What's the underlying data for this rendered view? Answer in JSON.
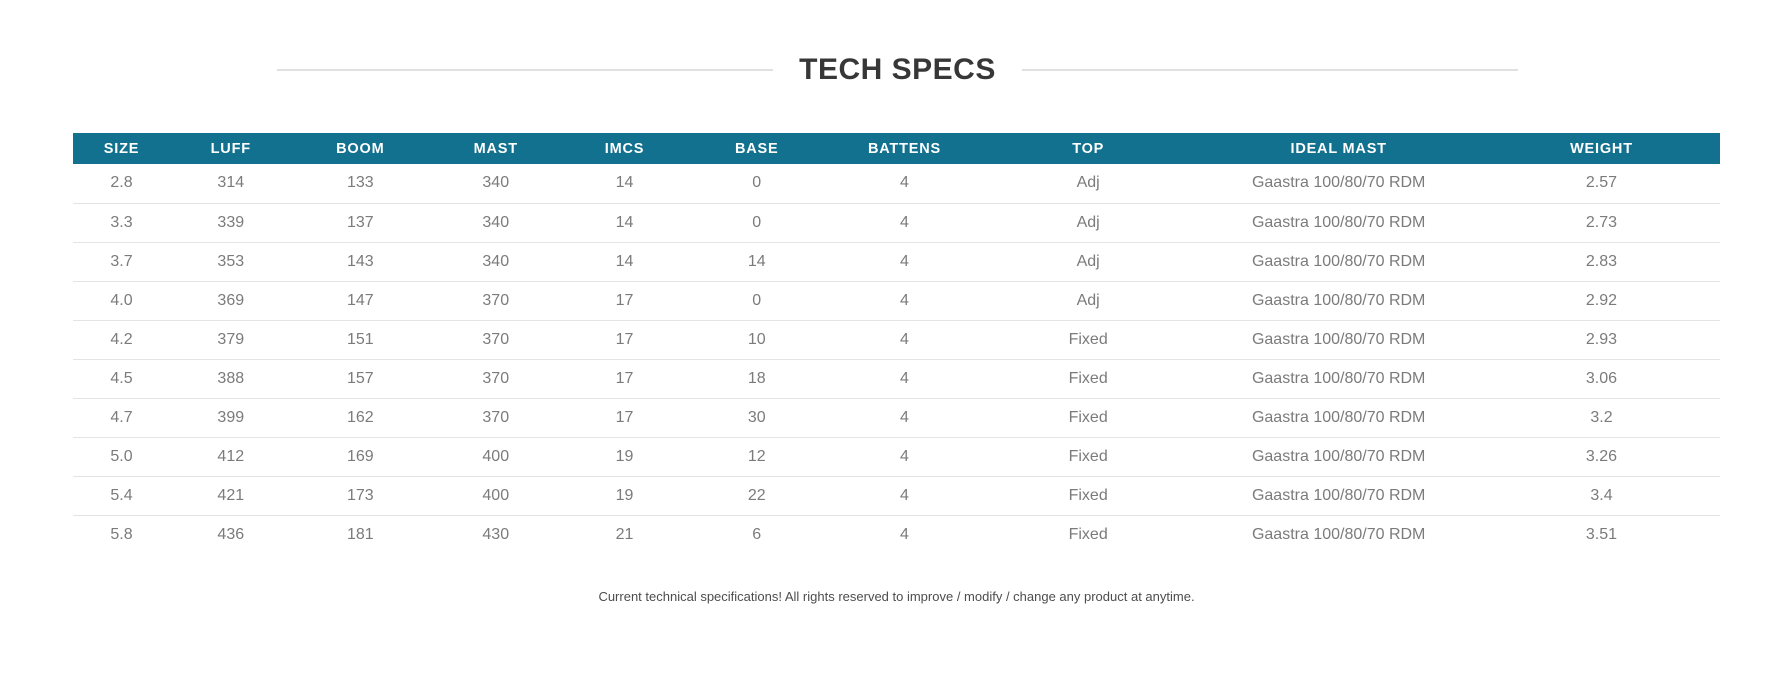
{
  "title": "TECH SPECS",
  "colors": {
    "header_bg": "#11718e",
    "header_text": "#ffffff",
    "row_text": "#7b7b7b",
    "row_divider": "#e4e4e4",
    "divider": "#e0e0e0",
    "title_text": "#373737",
    "footer_text": "#4d4d4d"
  },
  "table": {
    "columns": [
      "SIZE",
      "LUFF",
      "BOOM",
      "MAST",
      "IMCS",
      "BASE",
      "BATTENS",
      "TOP",
      "IDEAL MAST",
      "WEIGHT"
    ],
    "rows": [
      [
        "2.8",
        "314",
        "133",
        "340",
        "14",
        "0",
        "4",
        "Adj",
        "Gaastra 100/80/70 RDM",
        "2.57"
      ],
      [
        "3.3",
        "339",
        "137",
        "340",
        "14",
        "0",
        "4",
        "Adj",
        "Gaastra 100/80/70 RDM",
        "2.73"
      ],
      [
        "3.7",
        "353",
        "143",
        "340",
        "14",
        "14",
        "4",
        "Adj",
        "Gaastra 100/80/70 RDM",
        "2.83"
      ],
      [
        "4.0",
        "369",
        "147",
        "370",
        "17",
        "0",
        "4",
        "Adj",
        "Gaastra 100/80/70 RDM",
        "2.92"
      ],
      [
        "4.2",
        "379",
        "151",
        "370",
        "17",
        "10",
        "4",
        "Fixed",
        "Gaastra 100/80/70 RDM",
        "2.93"
      ],
      [
        "4.5",
        "388",
        "157",
        "370",
        "17",
        "18",
        "4",
        "Fixed",
        "Gaastra 100/80/70 RDM",
        "3.06"
      ],
      [
        "4.7",
        "399",
        "162",
        "370",
        "17",
        "30",
        "4",
        "Fixed",
        "Gaastra 100/80/70 RDM",
        "3.2"
      ],
      [
        "5.0",
        "412",
        "169",
        "400",
        "19",
        "12",
        "4",
        "Fixed",
        "Gaastra 100/80/70 RDM",
        "3.26"
      ],
      [
        "5.4",
        "421",
        "173",
        "400",
        "19",
        "22",
        "4",
        "Fixed",
        "Gaastra 100/80/70 RDM",
        "3.4"
      ],
      [
        "5.8",
        "436",
        "181",
        "430",
        "21",
        "6",
        "4",
        "Fixed",
        "Gaastra 100/80/70 RDM",
        "3.51"
      ]
    ]
  },
  "footer_note": "Current technical specifications! All rights reserved to improve / modify / change any product at anytime."
}
